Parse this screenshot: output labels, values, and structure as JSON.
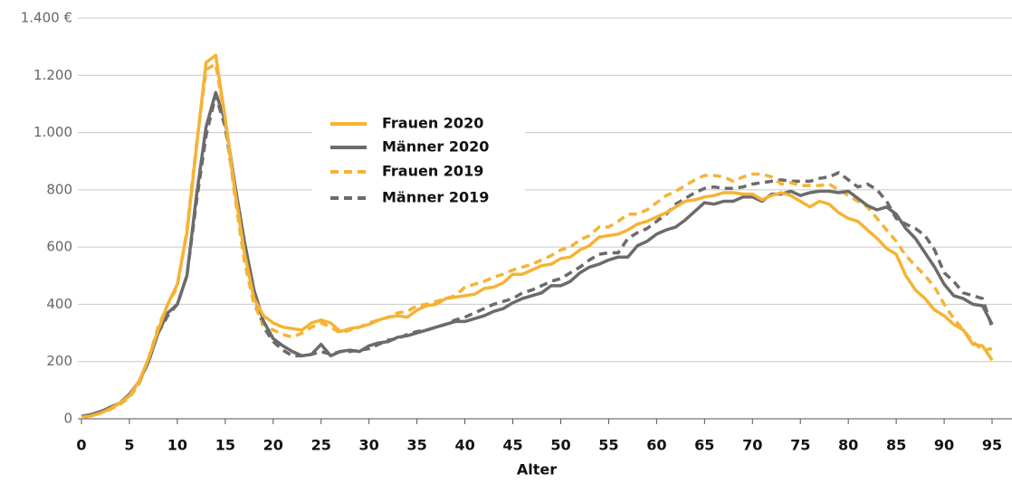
{
  "chart_data": {
    "type": "line",
    "x_label": "Alter",
    "x": [
      0,
      1,
      2,
      3,
      4,
      5,
      6,
      7,
      8,
      9,
      10,
      11,
      12,
      13,
      14,
      15,
      16,
      17,
      18,
      19,
      20,
      21,
      22,
      23,
      24,
      25,
      26,
      27,
      28,
      29,
      30,
      31,
      32,
      33,
      34,
      35,
      36,
      37,
      38,
      39,
      40,
      41,
      42,
      43,
      44,
      45,
      46,
      47,
      48,
      49,
      50,
      51,
      52,
      53,
      54,
      55,
      56,
      57,
      58,
      59,
      60,
      61,
      62,
      63,
      64,
      65,
      66,
      67,
      68,
      69,
      70,
      71,
      72,
      73,
      74,
      75,
      76,
      77,
      78,
      79,
      80,
      81,
      82,
      83,
      84,
      85,
      86,
      87,
      88,
      89,
      90,
      91,
      92,
      93,
      94,
      95
    ],
    "xlim": [
      0,
      95
    ],
    "xticks": [
      0,
      5,
      10,
      15,
      20,
      25,
      30,
      35,
      40,
      45,
      50,
      55,
      60,
      65,
      70,
      75,
      80,
      85,
      90,
      95
    ],
    "ylim": [
      0,
      1400
    ],
    "yticks": [
      0,
      200,
      400,
      600,
      800,
      {
        "value": 1000,
        "label": "1.000"
      },
      {
        "value": 1200,
        "label": "1.200"
      },
      {
        "value": 1400,
        "label": "1.400 €"
      }
    ],
    "grid": true,
    "series": [
      {
        "name": "Frauen 2020",
        "color": "#f5b335",
        "dashed": false,
        "values": [
          5,
          10,
          20,
          35,
          55,
          80,
          130,
          210,
          310,
          400,
          470,
          650,
          950,
          1245,
          1270,
          1050,
          800,
          580,
          420,
          360,
          335,
          320,
          315,
          310,
          335,
          345,
          335,
          305,
          315,
          320,
          330,
          345,
          355,
          360,
          355,
          380,
          395,
          400,
          420,
          425,
          430,
          435,
          455,
          460,
          475,
          505,
          505,
          520,
          535,
          540,
          560,
          565,
          590,
          605,
          635,
          640,
          645,
          660,
          680,
          690,
          705,
          720,
          740,
          760,
          765,
          775,
          780,
          790,
          790,
          785,
          785,
          765,
          780,
          790,
          780,
          760,
          740,
          760,
          750,
          720,
          700,
          690,
          660,
          630,
          595,
          575,
          500,
          450,
          420,
          380,
          360,
          330,
          310,
          260,
          255,
          205
        ]
      },
      {
        "name": "Männer 2020",
        "color": "#6b6b6b",
        "dashed": false,
        "values": [
          8,
          15,
          25,
          40,
          55,
          85,
          130,
          200,
          300,
          370,
          400,
          500,
          780,
          1020,
          1140,
          1040,
          820,
          620,
          450,
          340,
          280,
          255,
          235,
          220,
          225,
          260,
          220,
          235,
          240,
          235,
          255,
          265,
          270,
          285,
          290,
          300,
          310,
          320,
          330,
          340,
          340,
          350,
          360,
          375,
          385,
          405,
          420,
          430,
          440,
          465,
          465,
          480,
          510,
          530,
          540,
          555,
          565,
          565,
          605,
          620,
          645,
          660,
          670,
          695,
          725,
          755,
          750,
          760,
          760,
          775,
          775,
          760,
          785,
          785,
          795,
          780,
          790,
          795,
          795,
          790,
          795,
          770,
          745,
          730,
          740,
          715,
          665,
          630,
          580,
          530,
          470,
          430,
          420,
          400,
          395,
          330
        ]
      },
      {
        "name": "Frauen 2019",
        "color": "#f5b335",
        "dashed": true,
        "values": [
          5,
          10,
          20,
          33,
          50,
          75,
          120,
          210,
          320,
          400,
          460,
          660,
          960,
          1220,
          1240,
          1040,
          780,
          550,
          400,
          330,
          310,
          295,
          285,
          300,
          320,
          335,
          320,
          300,
          310,
          320,
          335,
          345,
          355,
          370,
          375,
          395,
          400,
          410,
          420,
          430,
          460,
          470,
          480,
          495,
          505,
          520,
          530,
          540,
          555,
          570,
          590,
          600,
          625,
          640,
          670,
          670,
          690,
          715,
          715,
          730,
          755,
          780,
          795,
          815,
          835,
          850,
          850,
          845,
          830,
          845,
          855,
          855,
          845,
          820,
          825,
          815,
          815,
          815,
          820,
          800,
          780,
          760,
          740,
          700,
          660,
          620,
          570,
          535,
          500,
          460,
          400,
          350,
          310,
          270,
          240,
          245
        ]
      },
      {
        "name": "Männer 2019",
        "color": "#6b6b6b",
        "dashed": true,
        "values": [
          8,
          15,
          25,
          40,
          55,
          85,
          125,
          200,
          300,
          360,
          400,
          500,
          760,
          990,
          1130,
          1020,
          800,
          600,
          430,
          320,
          270,
          240,
          220,
          220,
          225,
          235,
          225,
          235,
          235,
          240,
          245,
          260,
          275,
          280,
          295,
          305,
          310,
          320,
          330,
          345,
          355,
          370,
          385,
          400,
          410,
          420,
          440,
          450,
          465,
          480,
          490,
          510,
          530,
          555,
          575,
          580,
          580,
          630,
          650,
          665,
          690,
          715,
          750,
          770,
          790,
          805,
          810,
          805,
          805,
          810,
          820,
          825,
          830,
          835,
          830,
          830,
          830,
          840,
          845,
          860,
          835,
          810,
          820,
          800,
          760,
          700,
          680,
          665,
          640,
          590,
          510,
          480,
          440,
          430,
          420,
          320
        ]
      }
    ]
  }
}
